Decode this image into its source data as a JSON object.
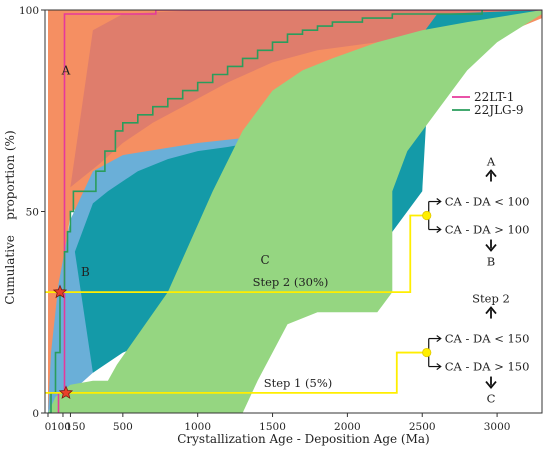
{
  "chart_data": {
    "type": "line",
    "xlabel": "Crystallization Age - Deposition Age (Ma)",
    "ylabel": "Cumulative    proportion (%)",
    "xlim": [
      -20,
      3300
    ],
    "ylim": [
      0,
      100
    ],
    "xticks": [
      0,
      100,
      150,
      500,
      1000,
      1500,
      2000,
      2500,
      3000
    ],
    "xtick_labels": [
      "0",
      "100",
      "150",
      "500",
      "1000",
      "1500",
      "2000",
      "2500",
      "3000"
    ],
    "yticks": [
      0,
      50,
      100
    ],
    "ytick_labels": [
      "0",
      "50",
      "100"
    ],
    "grid": false,
    "legend_position": "right",
    "fields": [
      {
        "name": "A",
        "color": "#f58f62",
        "label_pos": [
          120,
          84
        ],
        "polygon": [
          [
            0,
            0
          ],
          [
            0,
            100
          ],
          [
            3300,
            100
          ],
          [
            3300,
            98
          ],
          [
            150,
            50
          ],
          [
            0,
            0
          ]
        ]
      },
      {
        "name": "",
        "color": "#df7d6c",
        "polygon": [
          [
            150,
            56
          ],
          [
            300,
            95
          ],
          [
            500,
            99
          ],
          [
            1000,
            100
          ],
          [
            3300,
            100
          ],
          [
            3300,
            99
          ],
          [
            2700,
            96
          ],
          [
            2200,
            92
          ],
          [
            1800,
            90
          ],
          [
            1500,
            87
          ],
          [
            1200,
            82
          ],
          [
            900,
            76
          ],
          [
            700,
            72
          ],
          [
            500,
            67
          ],
          [
            350,
            62
          ],
          [
            150,
            56
          ]
        ]
      },
      {
        "name": "B",
        "color": "#6aafd8",
        "label_pos": [
          250,
          34
        ],
        "polygon": [
          [
            0,
            0
          ],
          [
            20,
            15
          ],
          [
            70,
            32
          ],
          [
            150,
            48
          ],
          [
            300,
            60
          ],
          [
            500,
            64
          ],
          [
            1000,
            67
          ],
          [
            1500,
            69
          ],
          [
            2000,
            70
          ],
          [
            2500,
            84
          ],
          [
            3000,
            97
          ],
          [
            3300,
            100
          ],
          [
            3300,
            99
          ],
          [
            2800,
            92
          ],
          [
            2500,
            85
          ],
          [
            2500,
            55
          ],
          [
            2200,
            40
          ],
          [
            1800,
            30
          ],
          [
            1500,
            25
          ],
          [
            1000,
            22
          ],
          [
            600,
            18
          ],
          [
            300,
            10
          ],
          [
            150,
            5
          ],
          [
            0,
            0
          ]
        ]
      },
      {
        "name": "",
        "color": "#149aa8",
        "polygon": [
          [
            180,
            40
          ],
          [
            300,
            52
          ],
          [
            400,
            55
          ],
          [
            600,
            60
          ],
          [
            800,
            63
          ],
          [
            1000,
            65
          ],
          [
            1200,
            66
          ],
          [
            1500,
            68
          ],
          [
            1700,
            70
          ],
          [
            2000,
            72
          ],
          [
            2200,
            78
          ],
          [
            2500,
            94
          ],
          [
            2600,
            99
          ],
          [
            3300,
            100
          ],
          [
            3300,
            99
          ],
          [
            2700,
            93
          ],
          [
            2550,
            88
          ],
          [
            2500,
            55
          ],
          [
            2300,
            45
          ],
          [
            2000,
            38
          ],
          [
            1700,
            30
          ],
          [
            1400,
            25
          ],
          [
            1000,
            22
          ],
          [
            700,
            18
          ],
          [
            500,
            15
          ],
          [
            300,
            10
          ],
          [
            180,
            40
          ]
        ]
      },
      {
        "name": "C",
        "color": "#95d681",
        "label_pos": [
          1450,
          37
        ],
        "polygon": [
          [
            0,
            0
          ],
          [
            50,
            4
          ],
          [
            150,
            7
          ],
          [
            300,
            8
          ],
          [
            400,
            8
          ],
          [
            460,
            12
          ],
          [
            800,
            30
          ],
          [
            1100,
            55
          ],
          [
            1300,
            70
          ],
          [
            1500,
            80
          ],
          [
            1700,
            85
          ],
          [
            1900,
            88
          ],
          [
            2200,
            92
          ],
          [
            2500,
            95
          ],
          [
            2800,
            97
          ],
          [
            3300,
            100
          ],
          [
            3300,
            99
          ],
          [
            3000,
            92
          ],
          [
            2800,
            85
          ],
          [
            2600,
            75
          ],
          [
            2400,
            65
          ],
          [
            2300,
            55
          ],
          [
            2300,
            30
          ],
          [
            2200,
            25
          ],
          [
            1800,
            25
          ],
          [
            1600,
            22
          ],
          [
            1500,
            15
          ],
          [
            1400,
            8
          ],
          [
            1350,
            4
          ],
          [
            1300,
            0
          ],
          [
            0,
            0
          ]
        ]
      }
    ],
    "series": [
      {
        "name": "22LT-1",
        "color": "#e6399b",
        "x": [
          70,
          70,
          110,
          130,
          150,
          160,
          200,
          400,
          600,
          700,
          720,
          800,
          3300
        ],
        "y": [
          0,
          5,
          99,
          99,
          99,
          99,
          99,
          99,
          99,
          99,
          100,
          100,
          100
        ]
      },
      {
        "name": "22JLG-9",
        "color": "#2a9d5c",
        "x": [
          0,
          20,
          50,
          80,
          110,
          130,
          150,
          170,
          200,
          320,
          380,
          450,
          500,
          600,
          700,
          800,
          900,
          1000,
          1100,
          1200,
          1300,
          1400,
          1500,
          1600,
          1700,
          1800,
          1900,
          2100,
          2300,
          2500,
          2700,
          2900
        ],
        "y": [
          0,
          5,
          15,
          30,
          40,
          45,
          50,
          55,
          55,
          60,
          65,
          70,
          72,
          74,
          76,
          78,
          80,
          82,
          84,
          86,
          88,
          90,
          92,
          94,
          95,
          96,
          97,
          98,
          99,
          99,
          99,
          100
        ]
      }
    ],
    "stars": [
      {
        "x": 80,
        "y": 30
      },
      {
        "x": 120,
        "y": 5
      }
    ],
    "steps": [
      {
        "label": "Step 2  (30%)",
        "y": 30,
        "x_end": 2420,
        "up_to": 49,
        "label_x": 1620
      },
      {
        "label": "Step 1  (5%)",
        "y": 5,
        "x_end": 2330,
        "up_to": 15,
        "label_x": 1670
      }
    ],
    "decision_nodes": [
      {
        "x": 2530,
        "y": 49,
        "upper": "CA - DA < 100",
        "lower": "CA - DA > 100",
        "up_label": "A",
        "down_label": "B"
      },
      {
        "x": 2530,
        "y": 15,
        "upper": "CA - DA < 150",
        "lower": "CA - DA > 150",
        "up_label": "Step 2",
        "down_label": "C"
      }
    ]
  }
}
